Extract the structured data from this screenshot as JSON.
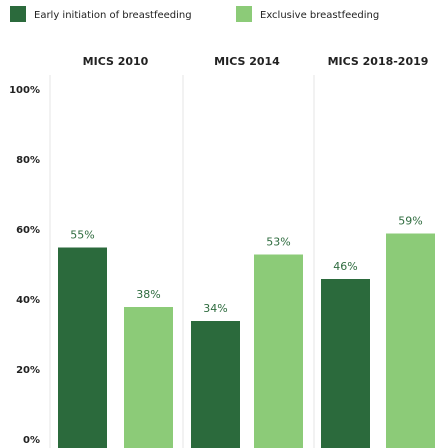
{
  "chart_data": {
    "type": "bar",
    "categories": [
      "MICS 2010",
      "MICS 2014",
      "MICS 2018-2019"
    ],
    "series": [
      {
        "name": "Early initiation of breastfeeding",
        "color": "#2b6a3c",
        "values": [
          55,
          34,
          46
        ],
        "value_labels": [
          "55%",
          "34%",
          "46%"
        ]
      },
      {
        "name": "Exclusive breastfeeding",
        "color": "#8ccb78",
        "values": [
          38,
          53,
          59
        ],
        "value_labels": [
          "38%",
          "53%",
          "59%"
        ]
      }
    ],
    "ylim": [
      0,
      100
    ],
    "yticks": [
      {
        "value": 0,
        "label": "0%"
      },
      {
        "value": 20,
        "label": "20%"
      },
      {
        "value": 40,
        "label": "40%"
      },
      {
        "value": 60,
        "label": "60%"
      },
      {
        "value": 80,
        "label": "80%"
      },
      {
        "value": 100,
        "label": "100%"
      }
    ],
    "legend": "top-left"
  }
}
